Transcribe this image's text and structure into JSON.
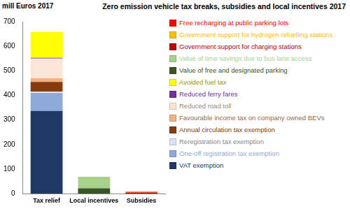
{
  "chart_data": {
    "type": "bar",
    "title": "Zero emission vehicle tax breaks, subsidies and local incentives 2017",
    "y_label": "mill Euros 2017",
    "categories": [
      "Tax relief",
      "Local incentives",
      "Subsidies"
    ],
    "stacked": true,
    "grid": false,
    "legend": "right",
    "ylim": [
      0,
      700
    ],
    "yticks": [
      0,
      100,
      200,
      300,
      400,
      500,
      600,
      700
    ],
    "series": [
      {
        "name": "VAT exemption",
        "color": "#1f3864",
        "values": [
          337,
          0,
          0
        ]
      },
      {
        "name": "One-off registration tax exemption",
        "color": "#8eaadb",
        "values": [
          73,
          0,
          0
        ]
      },
      {
        "name": "Reregistration tax exemption",
        "color": "#dae3f3",
        "values": [
          5,
          0,
          0
        ]
      },
      {
        "name": "Annual circulation tax exemption",
        "color": "#843c0c",
        "values": [
          40,
          0,
          0
        ]
      },
      {
        "name": "Favourable income tax on company owned BEVs",
        "color": "#f4b183",
        "values": [
          15,
          0,
          0
        ]
      },
      {
        "name": "Reduced road toll",
        "color": "#fbe5d6",
        "values": [
          80,
          0,
          0
        ]
      },
      {
        "name": "Reduced ferry fares",
        "color": "#7030a0",
        "values": [
          3,
          0,
          0
        ]
      },
      {
        "name": "Avoided fuel tax",
        "color": "#ffff00",
        "values": [
          105,
          0,
          0
        ]
      },
      {
        "name": "Value of free and designated parking",
        "color": "#375623",
        "values": [
          0,
          22,
          0
        ]
      },
      {
        "name": "Value of time savings due to bus lane access",
        "color": "#a9d18e",
        "values": [
          0,
          47,
          0
        ]
      },
      {
        "name": "Government support for charging stations",
        "color": "#c00000",
        "values": [
          0,
          0,
          5
        ]
      },
      {
        "name": "Government support for hydrogen refuelling stations",
        "color": "#ffc000",
        "values": [
          0,
          0,
          1
        ]
      },
      {
        "name": "Free recharging at public parking lots",
        "color": "#ff0000",
        "values": [
          0,
          0,
          2
        ]
      }
    ]
  }
}
